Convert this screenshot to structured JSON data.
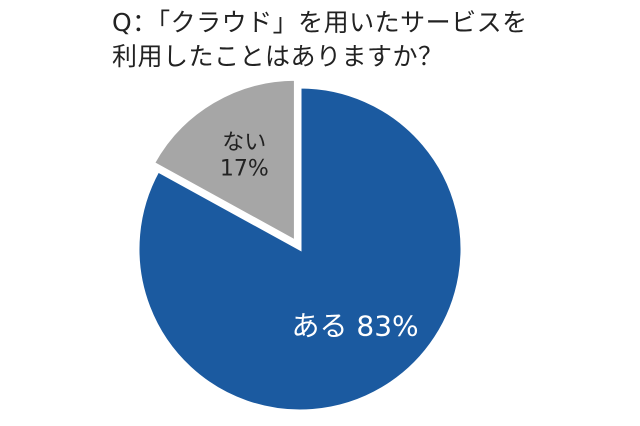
{
  "title_lines": [
    "Q：「クラウド」を用いたサービスを",
    "利用したことはありますか？"
  ],
  "chart_data": {
    "type": "pie",
    "title": "Q：「クラウド」を用いたサービスを利用したことはありますか？",
    "categories": [
      "ある",
      "ない"
    ],
    "values": [
      83,
      17
    ],
    "unit": "%",
    "slice_labels": [
      "ある 83%",
      "ない\n17%"
    ],
    "colors": [
      "#1b5aa0",
      "#a6a6a6"
    ],
    "stroke_color": "#ffffff",
    "exploded_slice": "ない",
    "start_angle": "12 o'clock",
    "direction": "clockwise",
    "legend": "none"
  }
}
